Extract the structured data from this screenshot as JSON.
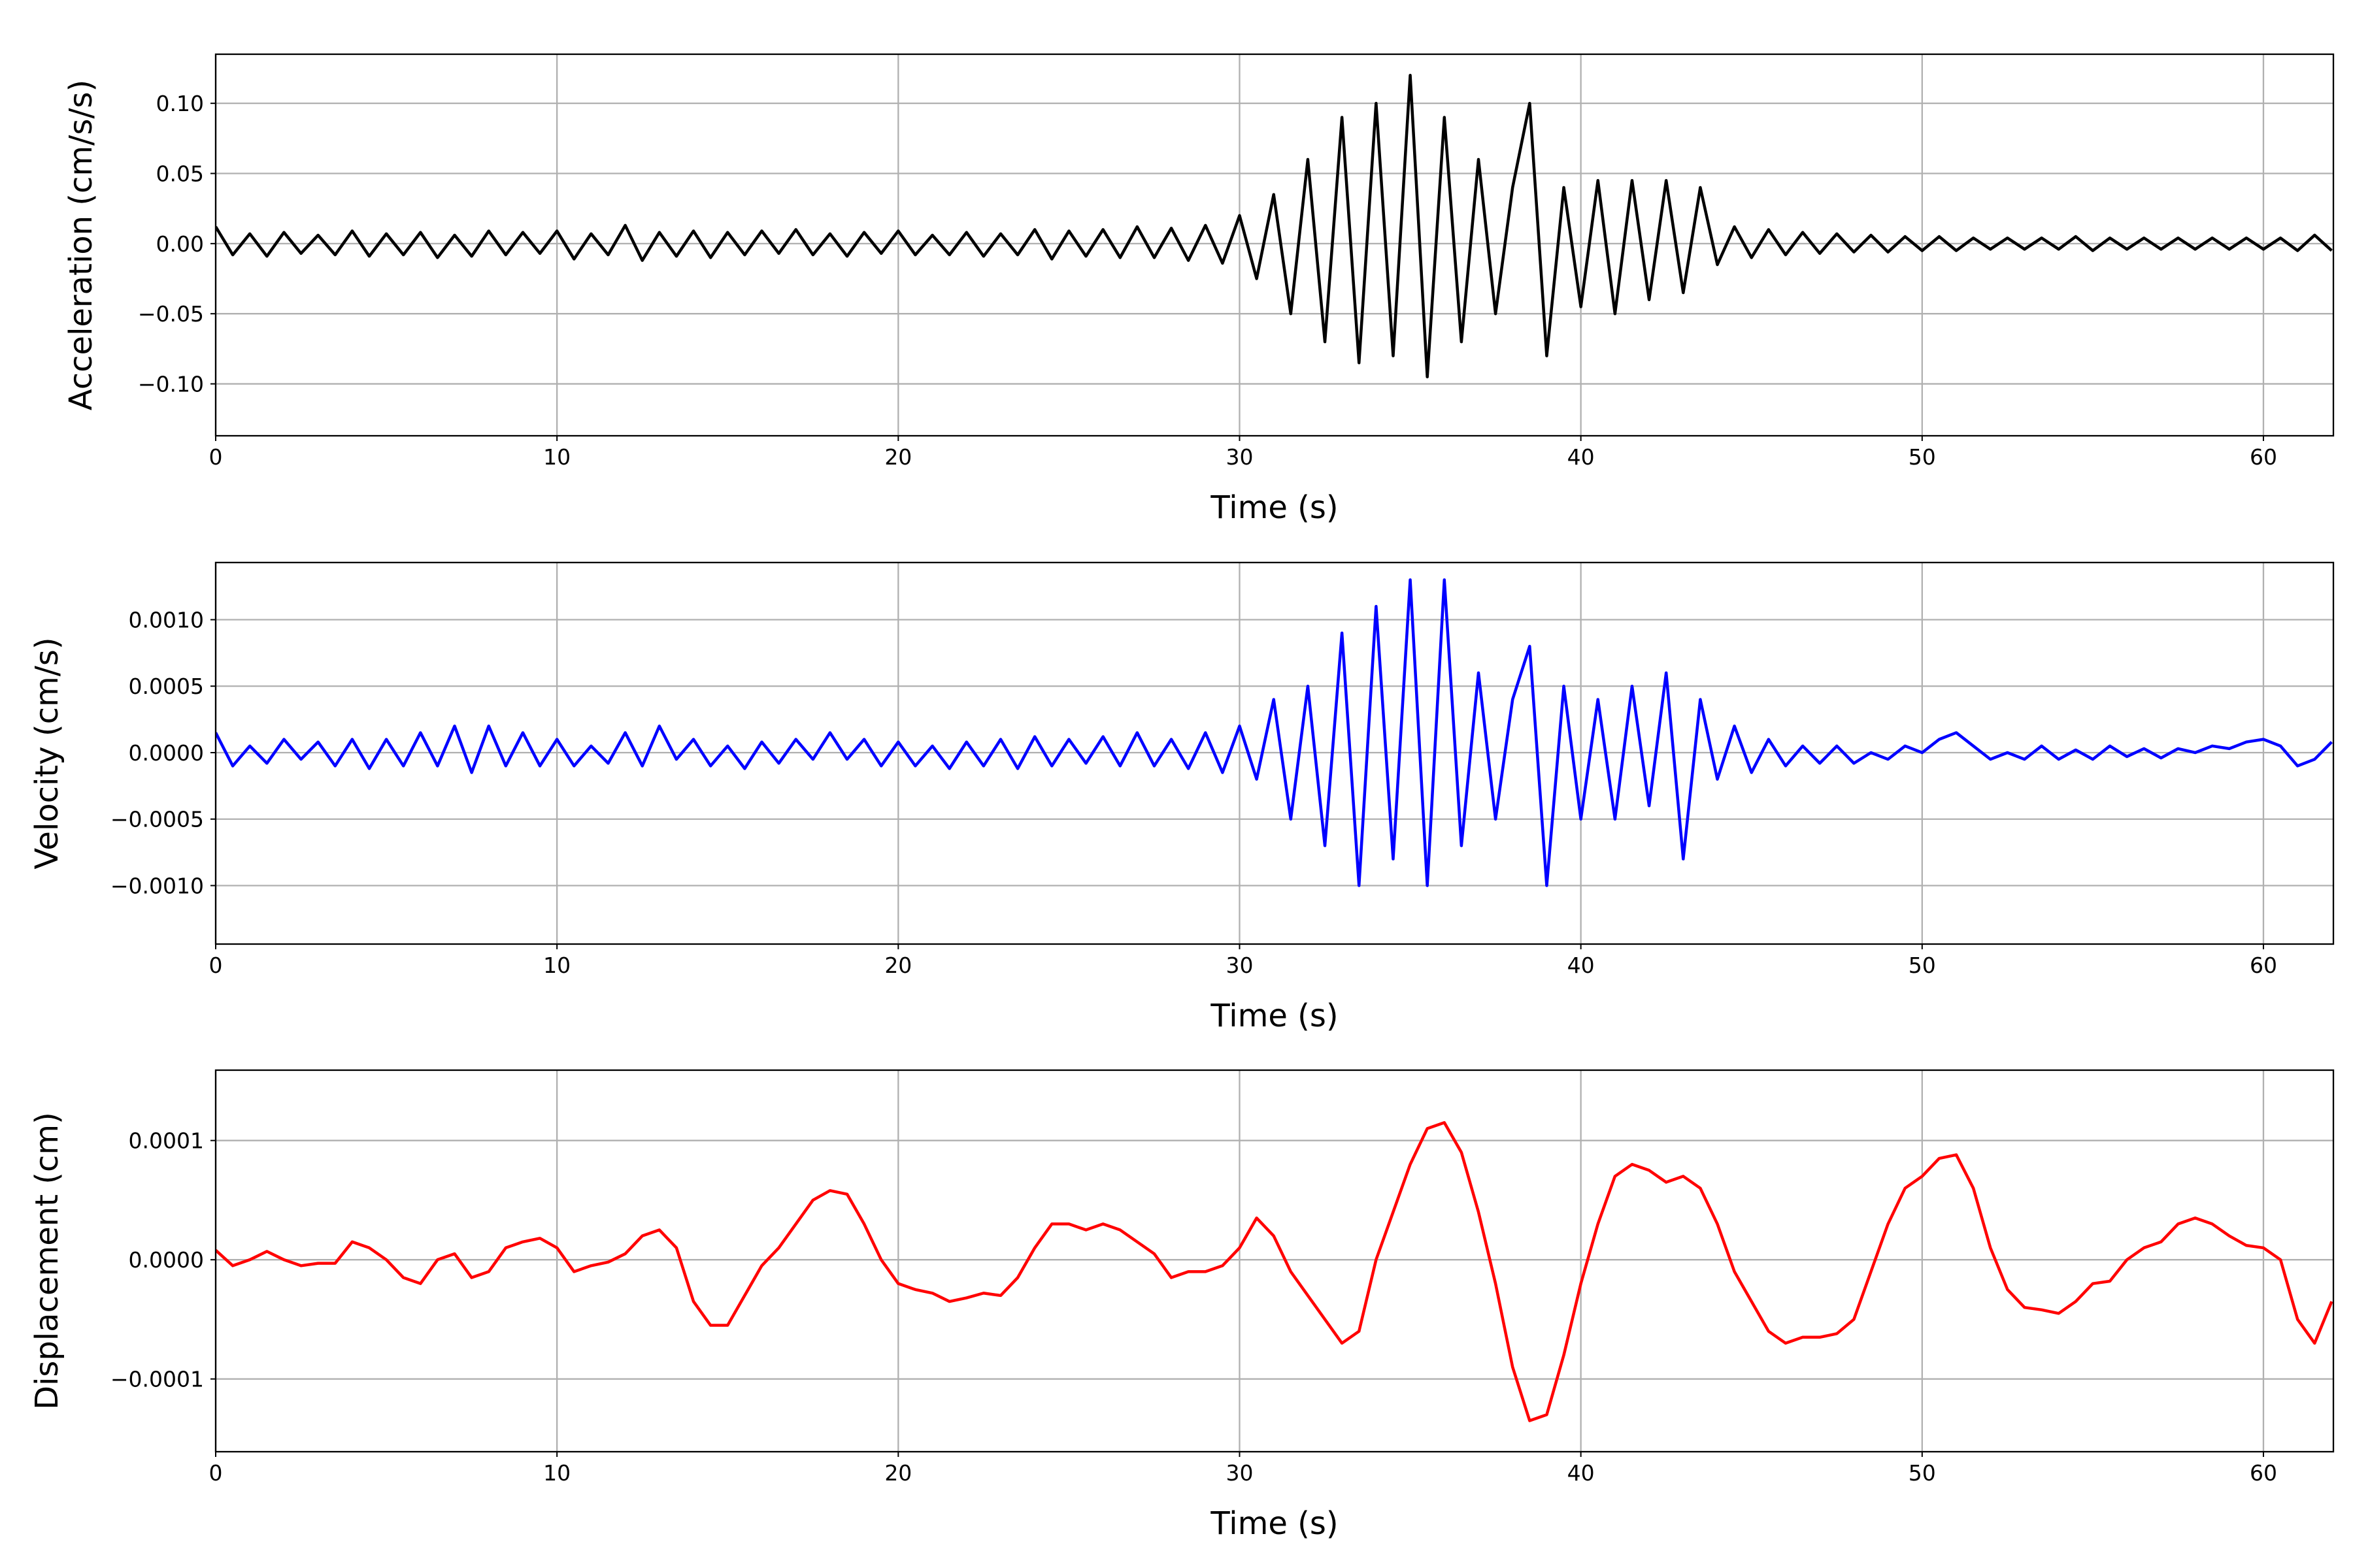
{
  "chart_data": [
    {
      "type": "line",
      "ylabel": "Acceleration (cm/s/s)",
      "xlabel": "Time (s)",
      "color": "#000000",
      "grid": true,
      "xlim": [
        0,
        62.05
      ],
      "xticks": [
        0,
        10,
        20,
        30,
        40,
        50,
        60
      ],
      "ylim": [
        -0.137,
        0.135
      ],
      "yticks": [
        {
          "value": -0.1,
          "label": "−0.10"
        },
        {
          "value": -0.05,
          "label": "−0.05"
        },
        {
          "value": 0,
          "label": "0.00"
        },
        {
          "value": 0.05,
          "label": "0.05"
        },
        {
          "value": 0.1,
          "label": "0.10"
        }
      ],
      "x": [
        0,
        0.5,
        1,
        1.5,
        2,
        2.5,
        3,
        3.5,
        4,
        4.5,
        5,
        5.5,
        6,
        6.5,
        7,
        7.5,
        8,
        8.5,
        9,
        9.5,
        10,
        10.5,
        11,
        11.5,
        12,
        12.5,
        13,
        13.5,
        14,
        14.5,
        15,
        15.5,
        16,
        16.5,
        17,
        17.5,
        18,
        18.5,
        19,
        19.5,
        20,
        20.5,
        21,
        21.5,
        22,
        22.5,
        23,
        23.5,
        24,
        24.5,
        25,
        25.5,
        26,
        26.5,
        27,
        27.5,
        28,
        28.5,
        29,
        29.5,
        30,
        30.5,
        31,
        31.5,
        32,
        32.5,
        33,
        33.5,
        34,
        34.5,
        35,
        35.5,
        36,
        36.5,
        37,
        37.5,
        38,
        38.5,
        39,
        39.5,
        40,
        40.5,
        41,
        41.5,
        42,
        42.5,
        43,
        43.5,
        44,
        44.5,
        45,
        45.5,
        46,
        46.5,
        47,
        47.5,
        48,
        48.5,
        49,
        49.5,
        50,
        50.5,
        51,
        51.5,
        52,
        52.5,
        53,
        53.5,
        54,
        54.5,
        55,
        55.5,
        56,
        56.5,
        57,
        57.5,
        58,
        58.5,
        59,
        59.5,
        60,
        60.5,
        61,
        61.5,
        62
      ],
      "values": [
        0.012,
        -0.008,
        0.007,
        -0.009,
        0.008,
        -0.007,
        0.006,
        -0.008,
        0.009,
        -0.009,
        0.007,
        -0.008,
        0.008,
        -0.01,
        0.006,
        -0.009,
        0.009,
        -0.008,
        0.008,
        -0.007,
        0.009,
        -0.011,
        0.007,
        -0.008,
        0.013,
        -0.012,
        0.008,
        -0.009,
        0.009,
        -0.01,
        0.008,
        -0.008,
        0.009,
        -0.007,
        0.01,
        -0.008,
        0.007,
        -0.009,
        0.008,
        -0.007,
        0.009,
        -0.008,
        0.006,
        -0.008,
        0.008,
        -0.009,
        0.007,
        -0.008,
        0.01,
        -0.011,
        0.009,
        -0.009,
        0.01,
        -0.01,
        0.012,
        -0.01,
        0.011,
        -0.012,
        0.013,
        -0.014,
        0.02,
        -0.025,
        0.035,
        -0.05,
        0.06,
        -0.07,
        0.09,
        -0.085,
        0.1,
        -0.08,
        0.12,
        -0.095,
        0.09,
        -0.07,
        0.06,
        -0.05,
        0.04,
        0.1,
        -0.08,
        0.04,
        -0.045,
        0.045,
        -0.05,
        0.045,
        -0.04,
        0.045,
        -0.035,
        0.04,
        -0.015,
        0.012,
        -0.01,
        0.01,
        -0.008,
        0.008,
        -0.007,
        0.007,
        -0.006,
        0.006,
        -0.006,
        0.005,
        -0.005,
        0.005,
        -0.005,
        0.004,
        -0.004,
        0.004,
        -0.004,
        0.004,
        -0.004,
        0.005,
        -0.005,
        0.004,
        -0.004,
        0.004,
        -0.004,
        0.004,
        -0.004,
        0.004,
        -0.004,
        0.004,
        -0.004,
        0.004,
        -0.005,
        0.006,
        -0.005
      ]
    },
    {
      "type": "line",
      "ylabel": "Velocity (cm/s)",
      "xlabel": "Time (s)",
      "color": "#0000ff",
      "grid": true,
      "xlim": [
        0,
        62.05
      ],
      "xticks": [
        0,
        10,
        20,
        30,
        40,
        50,
        60
      ],
      "ylim": [
        -0.00144,
        0.00143
      ],
      "yticks": [
        {
          "value": -0.001,
          "label": "−0.0010"
        },
        {
          "value": -0.0005,
          "label": "−0.0005"
        },
        {
          "value": 0,
          "label": "0.0000"
        },
        {
          "value": 0.0005,
          "label": "0.0005"
        },
        {
          "value": 0.001,
          "label": "0.0010"
        }
      ],
      "x": [
        0,
        0.5,
        1,
        1.5,
        2,
        2.5,
        3,
        3.5,
        4,
        4.5,
        5,
        5.5,
        6,
        6.5,
        7,
        7.5,
        8,
        8.5,
        9,
        9.5,
        10,
        10.5,
        11,
        11.5,
        12,
        12.5,
        13,
        13.5,
        14,
        14.5,
        15,
        15.5,
        16,
        16.5,
        17,
        17.5,
        18,
        18.5,
        19,
        19.5,
        20,
        20.5,
        21,
        21.5,
        22,
        22.5,
        23,
        23.5,
        24,
        24.5,
        25,
        25.5,
        26,
        26.5,
        27,
        27.5,
        28,
        28.5,
        29,
        29.5,
        30,
        30.5,
        31,
        31.5,
        32,
        32.5,
        33,
        33.5,
        34,
        34.5,
        35,
        35.5,
        36,
        36.5,
        37,
        37.5,
        38,
        38.5,
        39,
        39.5,
        40,
        40.5,
        41,
        41.5,
        42,
        42.5,
        43,
        43.5,
        44,
        44.5,
        45,
        45.5,
        46,
        46.5,
        47,
        47.5,
        48,
        48.5,
        49,
        49.5,
        50,
        50.5,
        51,
        51.5,
        52,
        52.5,
        53,
        53.5,
        54,
        54.5,
        55,
        55.5,
        56,
        56.5,
        57,
        57.5,
        58,
        58.5,
        59,
        59.5,
        60,
        60.5,
        61,
        61.5,
        62
      ],
      "values": [
        0.00015,
        -0.0001,
        5e-05,
        -8e-05,
        0.0001,
        -5e-05,
        8e-05,
        -0.0001,
        0.0001,
        -0.00012,
        0.0001,
        -0.0001,
        0.00015,
        -0.0001,
        0.0002,
        -0.00015,
        0.0002,
        -0.0001,
        0.00015,
        -0.0001,
        0.0001,
        -0.0001,
        5e-05,
        -8e-05,
        0.00015,
        -0.0001,
        0.0002,
        -5e-05,
        0.0001,
        -0.0001,
        5e-05,
        -0.00012,
        8e-05,
        -8e-05,
        0.0001,
        -5e-05,
        0.00015,
        -5e-05,
        0.0001,
        -0.0001,
        8e-05,
        -0.0001,
        5e-05,
        -0.00012,
        8e-05,
        -0.0001,
        0.0001,
        -0.00012,
        0.00012,
        -0.0001,
        0.0001,
        -8e-05,
        0.00012,
        -0.0001,
        0.00015,
        -0.0001,
        0.0001,
        -0.00012,
        0.00015,
        -0.00015,
        0.0002,
        -0.0002,
        0.0004,
        -0.0005,
        0.0005,
        -0.0007,
        0.0009,
        -0.001,
        0.0011,
        -0.0008,
        0.0013,
        -0.001,
        0.0013,
        -0.0007,
        0.0006,
        -0.0005,
        0.0004,
        0.0008,
        -0.001,
        0.0005,
        -0.0005,
        0.0004,
        -0.0005,
        0.0005,
        -0.0004,
        0.0006,
        -0.0008,
        0.0004,
        -0.0002,
        0.0002,
        -0.00015,
        0.0001,
        -0.0001,
        5e-05,
        -8e-05,
        5e-05,
        -8e-05,
        0.0,
        -5e-05,
        5e-05,
        0.0,
        0.0001,
        0.00015,
        5e-05,
        -5e-05,
        0.0,
        -5e-05,
        5e-05,
        -5e-05,
        2e-05,
        -5e-05,
        5e-05,
        -3e-05,
        3e-05,
        -4e-05,
        3e-05,
        0.0,
        5e-05,
        3e-05,
        8e-05,
        0.0001,
        5e-05,
        -0.0001,
        -5e-05,
        8e-05
      ]
    },
    {
      "type": "line",
      "ylabel": "Displacement (cm)",
      "xlabel": "Time (s)",
      "color": "#ff0000",
      "grid": true,
      "xlim": [
        0,
        62.05
      ],
      "xticks": [
        0,
        10,
        20,
        30,
        40,
        50,
        60
      ],
      "ylim": [
        -0.000161,
        0.000159
      ],
      "yticks": [
        {
          "value": -0.0001,
          "label": "−0.0001"
        },
        {
          "value": 0,
          "label": "0.0000"
        },
        {
          "value": 0.0001,
          "label": "0.0001"
        }
      ],
      "x": [
        0,
        0.5,
        1,
        1.5,
        2,
        2.5,
        3,
        3.5,
        4,
        4.5,
        5,
        5.5,
        6,
        6.5,
        7,
        7.5,
        8,
        8.5,
        9,
        9.5,
        10,
        10.5,
        11,
        11.5,
        12,
        12.5,
        13,
        13.5,
        14,
        14.5,
        15,
        15.5,
        16,
        16.5,
        17,
        17.5,
        18,
        18.5,
        19,
        19.5,
        20,
        20.5,
        21,
        21.5,
        22,
        22.5,
        23,
        23.5,
        24,
        24.5,
        25,
        25.5,
        26,
        26.5,
        27,
        27.5,
        28,
        28.5,
        29,
        29.5,
        30,
        30.5,
        31,
        31.5,
        32,
        32.5,
        33,
        33.5,
        34,
        34.5,
        35,
        35.5,
        36,
        36.5,
        37,
        37.5,
        38,
        38.5,
        39,
        39.5,
        40,
        40.5,
        41,
        41.5,
        42,
        42.5,
        43,
        43.5,
        44,
        44.5,
        45,
        45.5,
        46,
        46.5,
        47,
        47.5,
        48,
        48.5,
        49,
        49.5,
        50,
        50.5,
        51,
        51.5,
        52,
        52.5,
        53,
        53.5,
        54,
        54.5,
        55,
        55.5,
        56,
        56.5,
        57,
        57.5,
        58,
        58.5,
        59,
        59.5,
        60,
        60.5,
        61,
        61.5,
        62
      ],
      "values": [
        8e-06,
        -5e-06,
        0,
        7e-06,
        0,
        -5e-06,
        -3e-06,
        -3e-06,
        1.5e-05,
        1e-05,
        0,
        -1.5e-05,
        -2e-05,
        0,
        5e-06,
        -1.5e-05,
        -1e-05,
        1e-05,
        1.5e-05,
        1.8e-05,
        1e-05,
        -1e-05,
        -5e-06,
        -2e-06,
        5e-06,
        2e-05,
        2.5e-05,
        1e-05,
        -3.5e-05,
        -5.5e-05,
        -5.5e-05,
        -3e-05,
        -5e-06,
        1e-05,
        3e-05,
        5e-05,
        5.8e-05,
        5.5e-05,
        3e-05,
        0,
        -2e-05,
        -2.5e-05,
        -2.8e-05,
        -3.5e-05,
        -3.2e-05,
        -2.8e-05,
        -3e-05,
        -1.5e-05,
        1e-05,
        3e-05,
        3e-05,
        2.5e-05,
        3e-05,
        2.5e-05,
        1.5e-05,
        5e-06,
        -1.5e-05,
        -1e-05,
        -1e-05,
        -5e-06,
        1e-05,
        3.5e-05,
        2e-05,
        -1e-05,
        -3e-05,
        -5e-05,
        -7e-05,
        -6e-05,
        0,
        4e-05,
        8e-05,
        0.00011,
        0.000115,
        9e-05,
        4e-05,
        -2e-05,
        -9e-05,
        -0.000135,
        -0.00013,
        -8e-05,
        -2e-05,
        3e-05,
        7e-05,
        8e-05,
        7.5e-05,
        6.5e-05,
        7e-05,
        6e-05,
        3e-05,
        -1e-05,
        -3.5e-05,
        -6e-05,
        -7e-05,
        -6.5e-05,
        -6.5e-05,
        -6.2e-05,
        -5e-05,
        -1e-05,
        3e-05,
        6e-05,
        7e-05,
        8.5e-05,
        8.8e-05,
        6e-05,
        1e-05,
        -2.5e-05,
        -4e-05,
        -4.2e-05,
        -4.5e-05,
        -3.5e-05,
        -2e-05,
        -1.8e-05,
        0,
        1e-05,
        1.5e-05,
        3e-05,
        3.5e-05,
        3e-05,
        2e-05,
        1.2e-05,
        1e-05,
        0,
        -5e-05,
        -7e-05,
        -3.5e-05
      ]
    }
  ]
}
